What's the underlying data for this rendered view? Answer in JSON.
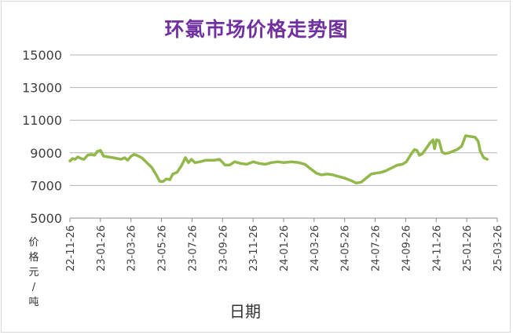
{
  "chart_data": {
    "type": "line",
    "title": "环氯市场价格走势图",
    "xlabel": "日期",
    "ylabel": "价格元/吨",
    "ylim": [
      5000,
      15000
    ],
    "yticks": [
      5000,
      7000,
      9000,
      11000,
      13000,
      15000
    ],
    "xticks": [
      "22-11-26",
      "23-01-26",
      "23-03-26",
      "23-05-26",
      "23-07-26",
      "23-09-26",
      "23-11-26",
      "24-01-26",
      "24-03-26",
      "24-05-26",
      "24-07-26",
      "24-09-26",
      "24-11-26",
      "25-01-26",
      "25-03-26"
    ],
    "xlim": [
      "2022-11-26",
      "2025-03-26"
    ],
    "grid": "horizontal",
    "line_color": "#92b84c",
    "series": [
      {
        "points": [
          [
            "2022-11-26",
            8500
          ],
          [
            "2022-12-01",
            8650
          ],
          [
            "2022-12-06",
            8600
          ],
          [
            "2022-12-12",
            8750
          ],
          [
            "2022-12-18",
            8650
          ],
          [
            "2022-12-24",
            8600
          ],
          [
            "2022-12-31",
            8850
          ],
          [
            "2023-01-08",
            8900
          ],
          [
            "2023-01-14",
            8850
          ],
          [
            "2023-01-20",
            9100
          ],
          [
            "2023-01-26",
            9150
          ],
          [
            "2023-02-01",
            8800
          ],
          [
            "2023-02-10",
            8750
          ],
          [
            "2023-02-20",
            8700
          ],
          [
            "2023-03-01",
            8650
          ],
          [
            "2023-03-08",
            8600
          ],
          [
            "2023-03-15",
            8700
          ],
          [
            "2023-03-21",
            8550
          ],
          [
            "2023-03-28",
            8800
          ],
          [
            "2023-04-03",
            8900
          ],
          [
            "2023-04-08",
            8850
          ],
          [
            "2023-04-18",
            8700
          ],
          [
            "2023-04-28",
            8400
          ],
          [
            "2023-05-08",
            8100
          ],
          [
            "2023-05-16",
            7700
          ],
          [
            "2023-05-24",
            7250
          ],
          [
            "2023-05-31",
            7250
          ],
          [
            "2023-06-06",
            7400
          ],
          [
            "2023-06-13",
            7350
          ],
          [
            "2023-06-19",
            7700
          ],
          [
            "2023-06-27",
            7800
          ],
          [
            "2023-07-06",
            8200
          ],
          [
            "2023-07-14",
            8700
          ],
          [
            "2023-07-20",
            8400
          ],
          [
            "2023-07-26",
            8600
          ],
          [
            "2023-08-02",
            8400
          ],
          [
            "2023-08-12",
            8450
          ],
          [
            "2023-08-24",
            8550
          ],
          [
            "2023-09-10",
            8550
          ],
          [
            "2023-09-20",
            8600
          ],
          [
            "2023-10-01",
            8250
          ],
          [
            "2023-10-10",
            8250
          ],
          [
            "2023-10-20",
            8450
          ],
          [
            "2023-11-01",
            8350
          ],
          [
            "2023-11-13",
            8300
          ],
          [
            "2023-11-26",
            8450
          ],
          [
            "2023-12-08",
            8350
          ],
          [
            "2023-12-20",
            8300
          ],
          [
            "2024-01-01",
            8400
          ],
          [
            "2024-01-14",
            8450
          ],
          [
            "2024-01-26",
            8400
          ],
          [
            "2024-02-10",
            8450
          ],
          [
            "2024-02-25",
            8400
          ],
          [
            "2024-03-08",
            8300
          ],
          [
            "2024-03-18",
            8050
          ],
          [
            "2024-03-31",
            7750
          ],
          [
            "2024-04-10",
            7650
          ],
          [
            "2024-04-22",
            7700
          ],
          [
            "2024-05-03",
            7650
          ],
          [
            "2024-05-14",
            7550
          ],
          [
            "2024-05-26",
            7450
          ],
          [
            "2024-06-08",
            7300
          ],
          [
            "2024-06-18",
            7150
          ],
          [
            "2024-06-28",
            7200
          ],
          [
            "2024-07-08",
            7450
          ],
          [
            "2024-07-18",
            7700
          ],
          [
            "2024-07-26",
            7750
          ],
          [
            "2024-08-06",
            7800
          ],
          [
            "2024-08-16",
            7900
          ],
          [
            "2024-08-26",
            8050
          ],
          [
            "2024-09-08",
            8250
          ],
          [
            "2024-09-18",
            8300
          ],
          [
            "2024-09-26",
            8450
          ],
          [
            "2024-10-04",
            8850
          ],
          [
            "2024-10-12",
            9200
          ],
          [
            "2024-10-17",
            9150
          ],
          [
            "2024-10-22",
            8850
          ],
          [
            "2024-10-28",
            8950
          ],
          [
            "2024-11-05",
            9300
          ],
          [
            "2024-11-12",
            9600
          ],
          [
            "2024-11-18",
            9800
          ],
          [
            "2024-11-21",
            9250
          ],
          [
            "2024-11-25",
            9800
          ],
          [
            "2024-11-30",
            9750
          ],
          [
            "2024-12-06",
            9050
          ],
          [
            "2024-12-12",
            8950
          ],
          [
            "2024-12-20",
            9000
          ],
          [
            "2024-12-28",
            9100
          ],
          [
            "2025-01-05",
            9200
          ],
          [
            "2025-01-14",
            9400
          ],
          [
            "2025-01-22",
            10050
          ],
          [
            "2025-02-01",
            10000
          ],
          [
            "2025-02-10",
            9950
          ],
          [
            "2025-02-16",
            9700
          ],
          [
            "2025-02-20",
            9100
          ],
          [
            "2025-02-27",
            8700
          ],
          [
            "2025-03-06",
            8600
          ]
        ]
      }
    ]
  }
}
